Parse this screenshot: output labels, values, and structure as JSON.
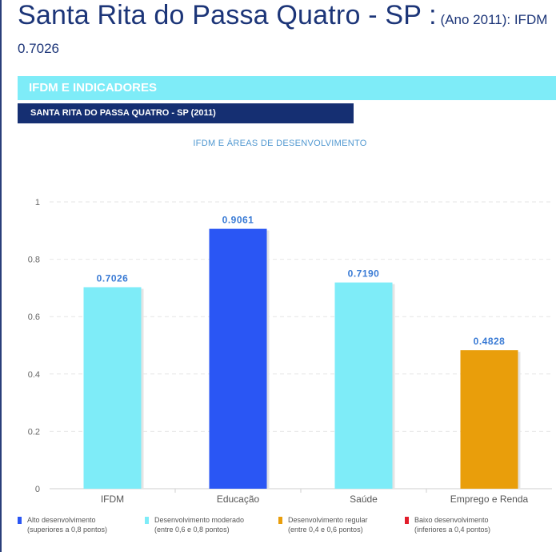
{
  "header": {
    "title_main": "Santa Rita do Passa Quatro - SP :",
    "title_suffix": " (Ano 2011): IFDM",
    "title_value": "0.7026"
  },
  "bands": {
    "section": "IFDM E INDICADORES",
    "subtitle": "SANTA RITA DO PASSA QUATRO - SP (2011)"
  },
  "chart_data": {
    "type": "bar",
    "title": "IFDM E ÁREAS DE DESENVOLVIMENTO",
    "categories": [
      "IFDM",
      "Educação",
      "Saúde",
      "Emprego e Renda"
    ],
    "values": [
      0.7026,
      0.9061,
      0.719,
      0.4828
    ],
    "value_labels": [
      "0.7026",
      "0.9061",
      "0.7190",
      "0.4828"
    ],
    "bar_colors": [
      "#7eecf8",
      "#2a56f4",
      "#7eecf8",
      "#e99e0b"
    ],
    "ylim": [
      0,
      1
    ],
    "yticks": [
      0,
      0.2,
      0.4,
      0.6,
      0.8,
      1
    ],
    "ytick_labels": [
      "0",
      "0.2",
      "0.4",
      "0.6",
      "0.8",
      "1"
    ],
    "grid": true,
    "xlabel": "",
    "ylabel": ""
  },
  "legend": [
    {
      "color": "#2a56f4",
      "line1": "Alto desenvolvimento",
      "line2": "(superiores a 0,8 pontos)"
    },
    {
      "color": "#7eecf8",
      "line1": "Desenvolvimento moderado",
      "line2": "(entre 0,6 e 0,8 pontos)"
    },
    {
      "color": "#e99e0b",
      "line1": "Desenvolvimento regular",
      "line2": "(entre 0,4 e 0,6 pontos)"
    },
    {
      "color": "#e21d2b",
      "line1": "Baixo desenvolvimento",
      "line2": "(inferiores a 0,4 pontos)"
    }
  ],
  "colors": {
    "title": "#1c3578",
    "band_cyan": "#7eecf8",
    "band_navy": "#152f72",
    "value_label": "#3a7bd5"
  }
}
